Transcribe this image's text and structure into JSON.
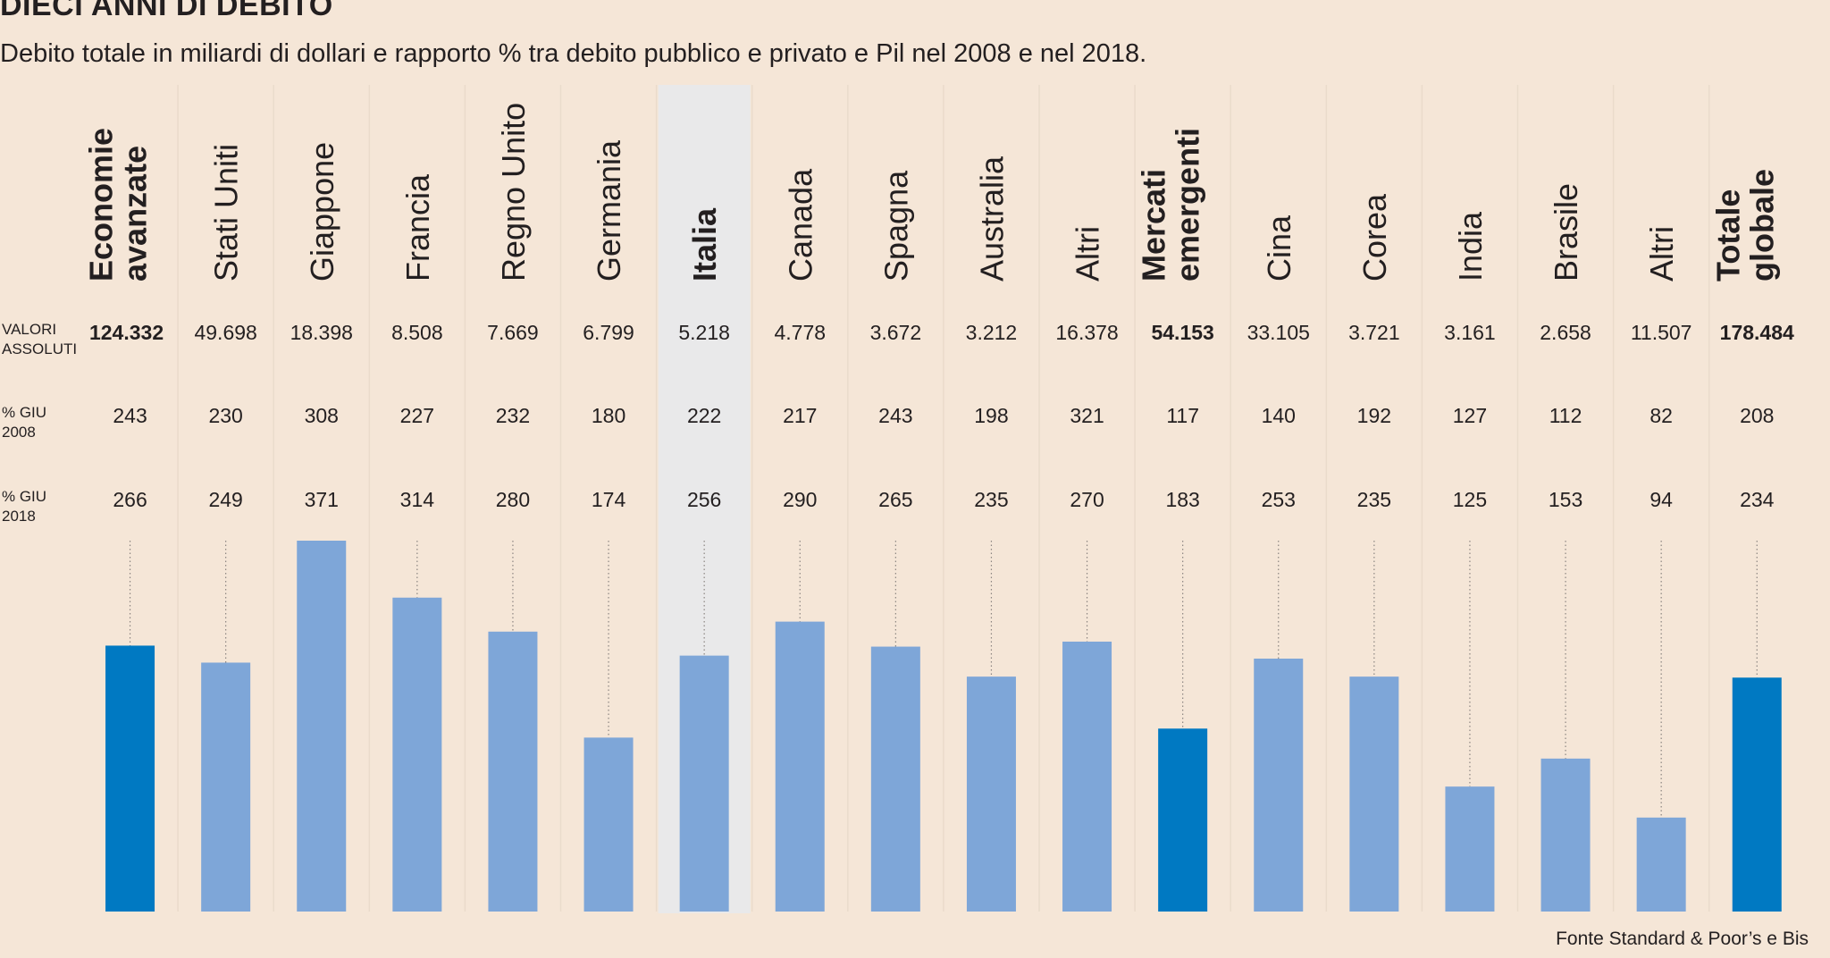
{
  "header": {
    "title": "DIECI ANNI DI DEBITO",
    "subtitle": "Debito totale in miliardi di dollari e rapporto % tra debito pubblico e privato e Pil nel 2008 e nel 2018."
  },
  "row_labels": {
    "valori": "VALORI\nASSOLUTI",
    "giu2008": "% GIU\n2008",
    "giu2018": "% GIU\n2018"
  },
  "source": "Fonte Standard & Poor’s e Bis",
  "colors": {
    "background": "#f5e6d7",
    "bar_aggregate": "#0079c2",
    "bar_country": "#7ea6d8",
    "highlight_column": "#e9e9ea",
    "dotted_line": "#8a8480"
  },
  "chart_data": {
    "type": "bar",
    "title": "DIECI ANNI DI DEBITO",
    "categories": [
      "Economie avanzate",
      "Stati Uniti",
      "Giappone",
      "Francia",
      "Regno Unito",
      "Germania",
      "Italia",
      "Canada",
      "Spagna",
      "Australia",
      "Altri",
      "Mercati emergenti",
      "Cina",
      "Corea",
      "India",
      "Brasile",
      "Altri",
      "Totale globale"
    ],
    "label_lines": [
      [
        "Economie",
        "avanzate"
      ],
      [
        "Stati Uniti"
      ],
      [
        "Giappone"
      ],
      [
        "Francia"
      ],
      [
        "Regno Unito"
      ],
      [
        "Germania"
      ],
      [
        "Italia"
      ],
      [
        "Canada"
      ],
      [
        "Spagna"
      ],
      [
        "Australia"
      ],
      [
        "Altri"
      ],
      [
        "Mercati",
        "emergenti"
      ],
      [
        "Cina"
      ],
      [
        "Corea"
      ],
      [
        "India"
      ],
      [
        "Brasile"
      ],
      [
        "Altri"
      ],
      [
        "Totale",
        "globale"
      ]
    ],
    "bold_categories": [
      "Economie avanzate",
      "Italia",
      "Mercati emergenti",
      "Totale globale"
    ],
    "aggregate_categories": [
      "Economie avanzate",
      "Mercati emergenti",
      "Totale globale"
    ],
    "highlighted_category": "Italia",
    "valori_assoluti_text": [
      "124.332",
      "49.698",
      "18.398",
      "8.508",
      "7.669",
      "6.799",
      "5.218",
      "4.778",
      "3.672",
      "3.212",
      "16.378",
      "54.153",
      "33.105",
      "3.721",
      "3.161",
      "2.658",
      "11.507",
      "178.484"
    ],
    "valori_assoluti": [
      124332,
      49698,
      18398,
      8508,
      7669,
      6799,
      5218,
      4778,
      3672,
      3212,
      16378,
      54153,
      33105,
      3721,
      3161,
      2658,
      11507,
      178484
    ],
    "series": [
      {
        "name": "% GIU 2008",
        "values": [
          243,
          230,
          308,
          227,
          232,
          180,
          222,
          217,
          243,
          198,
          321,
          117,
          140,
          192,
          127,
          112,
          82,
          208
        ]
      },
      {
        "name": "% GIU 2018",
        "values": [
          266,
          249,
          371,
          314,
          280,
          174,
          256,
          290,
          265,
          235,
          270,
          183,
          253,
          235,
          125,
          153,
          94,
          234
        ]
      }
    ],
    "bar_series": "% GIU 2018",
    "ylim": [
      0,
      371
    ],
    "grid": false
  }
}
